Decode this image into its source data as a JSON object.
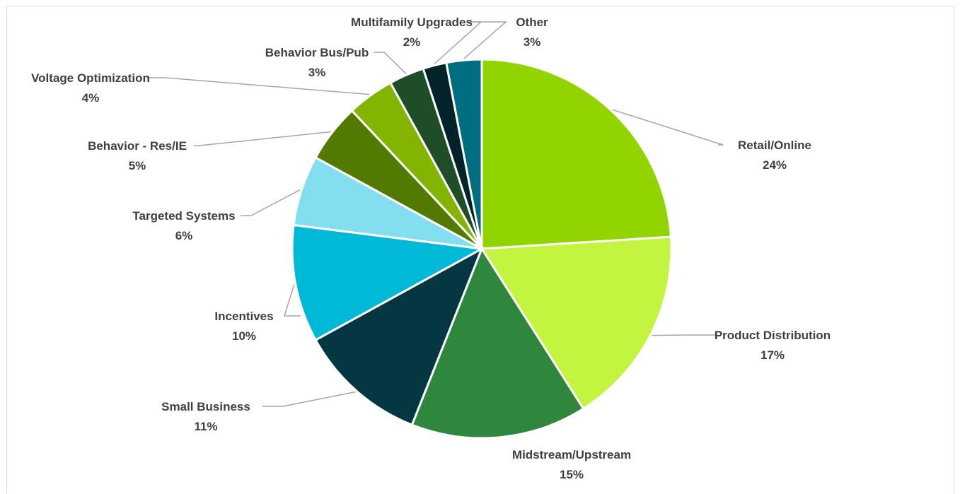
{
  "chart_data": {
    "type": "pie",
    "title": "",
    "slices": [
      {
        "label": "Retail/Online",
        "value": 24,
        "value_label": "24%",
        "color": "#92D400"
      },
      {
        "label": "Product Distribution",
        "value": 17,
        "value_label": "17%",
        "color": "#C3F43F"
      },
      {
        "label": "Midstream/Upstream",
        "value": 15,
        "value_label": "15%",
        "color": "#2F873D"
      },
      {
        "label": "Small Business",
        "value": 11,
        "value_label": "11%",
        "color": "#043741"
      },
      {
        "label": "Incentives",
        "value": 10,
        "value_label": "10%",
        "color": "#00B9D7"
      },
      {
        "label": "Targeted Systems",
        "value": 6,
        "value_label": "6%",
        "color": "#83DFEF"
      },
      {
        "label": "Behavior - Res/IE",
        "value": 5,
        "value_label": "5%",
        "color": "#527A00"
      },
      {
        "label": "Voltage Optimization",
        "value": 4,
        "value_label": "4%",
        "color": "#83B400"
      },
      {
        "label": "Behavior Bus/Pub",
        "value": 3,
        "value_label": "3%",
        "color": "#1E4D27"
      },
      {
        "label": "Multifamily Upgrades",
        "value": 2,
        "value_label": "2%",
        "color": "#02232A"
      },
      {
        "label": "Other",
        "value": 3,
        "value_label": "3%",
        "color": "#006D80"
      }
    ],
    "legend": "none",
    "data_labels": "outside-with-leader-lines"
  }
}
